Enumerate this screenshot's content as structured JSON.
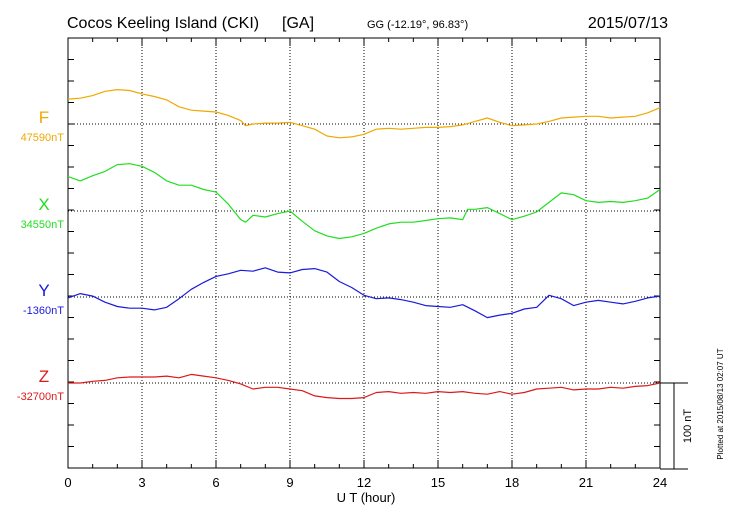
{
  "header": {
    "station": "Cocos Keeling Island (CKI)",
    "agency": "[GA]",
    "coords": "GG (-12.19°,  96.83°)",
    "date": "2015/07/13"
  },
  "footer_note": "Plotted at 2015/08/13 02:07 UT",
  "chart_data": {
    "type": "line",
    "xlabel": "U T (hour)",
    "xlim": [
      0,
      24
    ],
    "xticks": [
      "0",
      "3",
      "6",
      "9",
      "12",
      "15",
      "18",
      "21",
      "24"
    ],
    "y_units": "nT",
    "scale_bar": {
      "value": 100,
      "label": "100 nT"
    },
    "series": [
      {
        "name": "F",
        "baseline_label": "47590nT",
        "baseline": 47590,
        "color": "#f0a800",
        "x": [
          0,
          0.5,
          1,
          1.5,
          2,
          2.5,
          3,
          3.5,
          4,
          4.5,
          5,
          5.5,
          6,
          6.5,
          7,
          7.2,
          7.5,
          8,
          8.5,
          9,
          9.5,
          10,
          10.5,
          11,
          11.5,
          12,
          12.5,
          13,
          13.5,
          14,
          14.5,
          15,
          15.5,
          16,
          16.5,
          17,
          17.5,
          18,
          18.5,
          19,
          19.5,
          20,
          20.5,
          21,
          21.5,
          22,
          22.5,
          23,
          23.5,
          24
        ],
        "values": [
          47619,
          47620,
          47623,
          47628,
          47630,
          47629,
          47625,
          47622,
          47618,
          47610,
          47606,
          47605,
          47604,
          47600,
          47594,
          47588,
          47590,
          47591,
          47591,
          47592,
          47588,
          47584,
          47576,
          47574,
          47575,
          47578,
          47584,
          47585,
          47584,
          47585,
          47586,
          47586,
          47587,
          47589,
          47593,
          47597,
          47592,
          47588,
          47589,
          47590,
          47593,
          47597,
          47598,
          47599,
          47599,
          47597,
          47598,
          47599,
          47603,
          47609
        ]
      },
      {
        "name": "X",
        "baseline_label": "34550nT",
        "baseline": 34550,
        "color": "#22dd22",
        "x": [
          0,
          0.5,
          1,
          1.5,
          2,
          2.5,
          3,
          3.5,
          4,
          4.5,
          5,
          5.5,
          6,
          6.5,
          7,
          7.2,
          7.5,
          8,
          8.5,
          9,
          9.5,
          10,
          10.5,
          11,
          11.5,
          12,
          12.5,
          13,
          13.5,
          14,
          14.5,
          15,
          15.5,
          16,
          16.2,
          16.5,
          17,
          17.5,
          18,
          18.5,
          19,
          19.5,
          20,
          20.5,
          21,
          21.5,
          22,
          22.5,
          23,
          23.5,
          24
        ],
        "values": [
          34590,
          34585,
          34591,
          34596,
          34604,
          34605,
          34602,
          34595,
          34585,
          34580,
          34580,
          34575,
          34572,
          34558,
          34540,
          34537,
          34545,
          34543,
          34547,
          34550,
          34538,
          34527,
          34521,
          34518,
          34520,
          34524,
          34530,
          34535,
          34537,
          34537,
          34539,
          34541,
          34542,
          34540,
          34552,
          34552,
          34554,
          34547,
          34540,
          34544,
          34549,
          34560,
          34571,
          34569,
          34562,
          34560,
          34561,
          34560,
          34562,
          34565,
          34575
        ]
      },
      {
        "name": "Y",
        "baseline_label": "-1360nT",
        "baseline": -1360,
        "color": "#1a1adb",
        "x": [
          0,
          0.5,
          1,
          1.5,
          2,
          2.5,
          3,
          3.5,
          4,
          4.5,
          5,
          5.5,
          6,
          6.5,
          7,
          7.5,
          8,
          8.5,
          9,
          9.5,
          10,
          10.5,
          11,
          11.5,
          12,
          12.5,
          13,
          13.5,
          14,
          14.5,
          15,
          15.5,
          16,
          16.5,
          17,
          17.5,
          18,
          18.5,
          19,
          19.5,
          20,
          20.5,
          21,
          21.5,
          22,
          22.5,
          23,
          23.5,
          24
        ],
        "values": [
          -1361,
          -1356,
          -1359,
          -1366,
          -1371,
          -1373,
          -1373,
          -1375,
          -1372,
          -1362,
          -1351,
          -1343,
          -1336,
          -1333,
          -1329,
          -1330,
          -1326,
          -1331,
          -1332,
          -1328,
          -1327,
          -1331,
          -1342,
          -1349,
          -1358,
          -1362,
          -1361,
          -1363,
          -1366,
          -1370,
          -1371,
          -1372,
          -1369,
          -1376,
          -1384,
          -1381,
          -1379,
          -1374,
          -1372,
          -1358,
          -1362,
          -1370,
          -1366,
          -1364,
          -1366,
          -1368,
          -1365,
          -1361,
          -1359
        ]
      },
      {
        "name": "Z",
        "baseline_label": "-32700nT",
        "baseline": -32700,
        "color": "#dd1a1a",
        "x": [
          0,
          0.5,
          1,
          1.5,
          2,
          2.5,
          3,
          3.5,
          4,
          4.5,
          5,
          5.5,
          6,
          6.5,
          7,
          7.5,
          8,
          8.5,
          9,
          9.5,
          10,
          10.5,
          11,
          11.5,
          12,
          12.5,
          13,
          13.5,
          14,
          14.5,
          15,
          15.5,
          16,
          16.5,
          17,
          17.5,
          18,
          18.5,
          19,
          19.5,
          20,
          20.5,
          21,
          21.5,
          22,
          22.5,
          23,
          23.5,
          24
        ],
        "values": [
          -32700,
          -32700,
          -32698,
          -32697,
          -32694,
          -32693,
          -32693,
          -32693,
          -32692,
          -32694,
          -32690,
          -32692,
          -32694,
          -32697,
          -32701,
          -32707,
          -32705,
          -32705,
          -32707,
          -32709,
          -32715,
          -32717,
          -32718,
          -32718,
          -32717,
          -32711,
          -32710,
          -32712,
          -32711,
          -32712,
          -32710,
          -32711,
          -32710,
          -32712,
          -32713,
          -32710,
          -32713,
          -32711,
          -32707,
          -32706,
          -32705,
          -32708,
          -32707,
          -32707,
          -32705,
          -32706,
          -32704,
          -32703,
          -32700
        ]
      }
    ]
  }
}
